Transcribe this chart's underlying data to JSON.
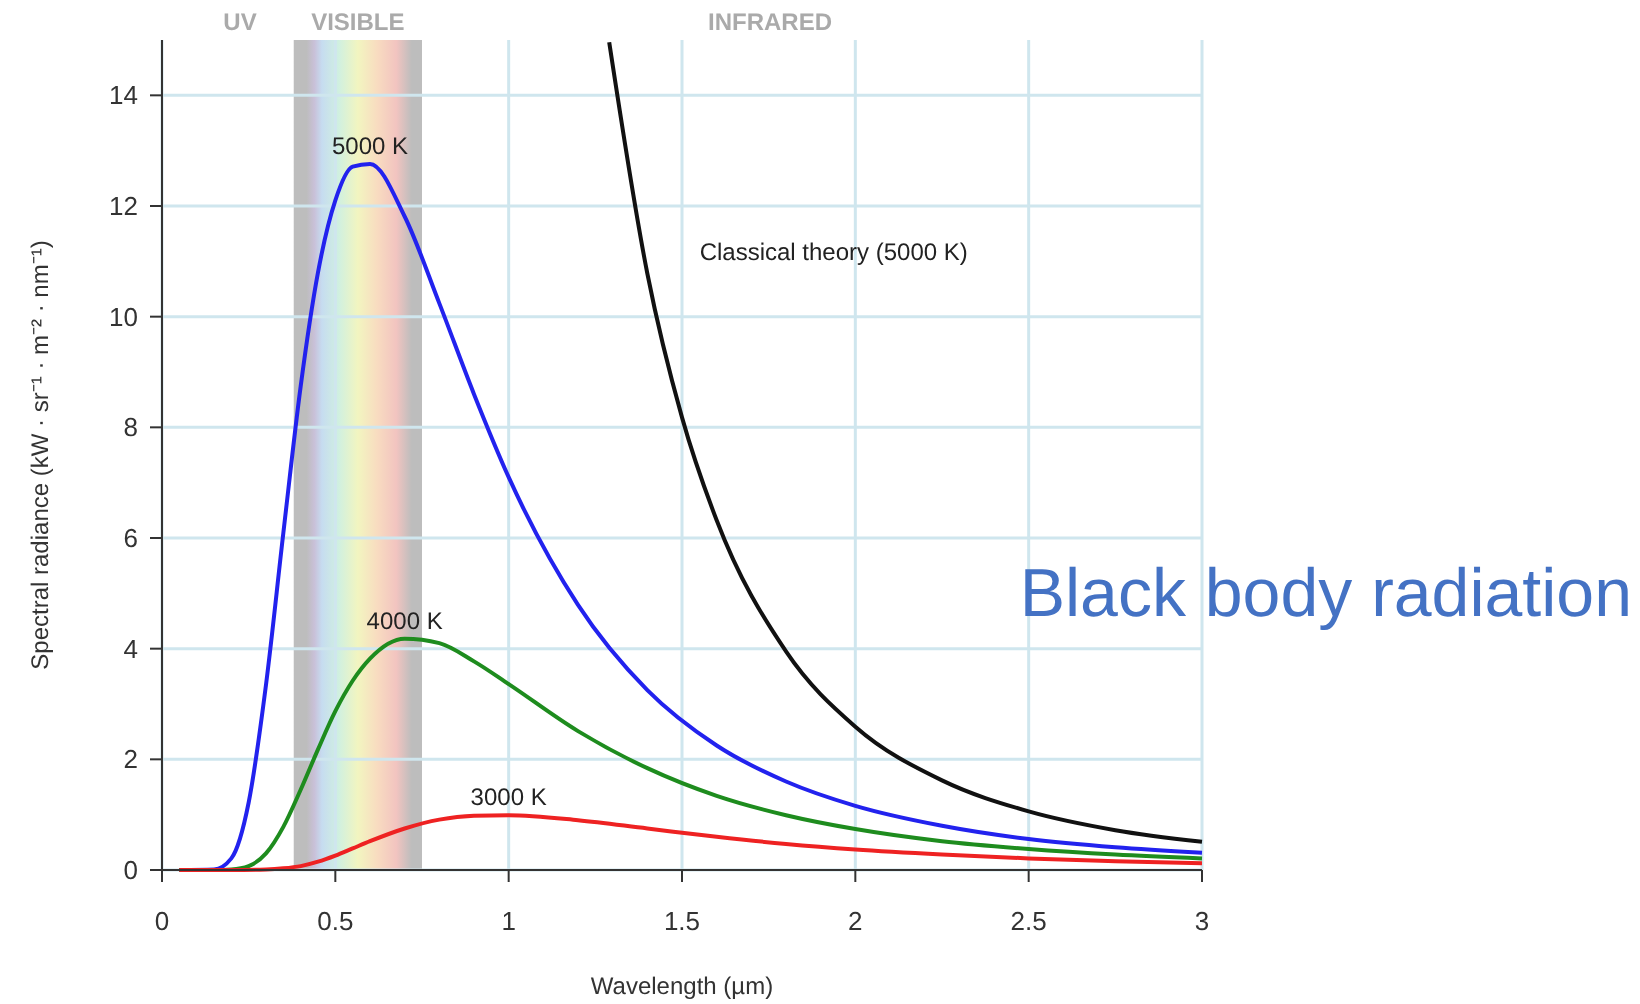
{
  "chart_data": {
    "type": "line",
    "title": "Black body radiation",
    "xlabel": "Wavelength (µm)",
    "ylabel": "Spectral radiance (kW · sr⁻¹ · m⁻² · nm⁻¹)",
    "xlim": [
      0,
      3
    ],
    "ylim": [
      0,
      15
    ],
    "xticks": [
      0,
      0.5,
      1,
      1.5,
      2,
      2.5,
      3
    ],
    "yticks": [
      0,
      2,
      4,
      6,
      8,
      10,
      12,
      14
    ],
    "grid": true,
    "annotations": [
      "UV",
      "INFRARED"
    ],
    "bands": [
      {
        "axis": "x",
        "from": 0.38,
        "to": 0.75,
        "label": "VISIBLE",
        "color": "#bdbdbd"
      }
    ],
    "series": [
      {
        "name": "5000 K",
        "color": "#2222ee",
        "x": [
          0.05,
          0.15,
          0.2,
          0.25,
          0.3,
          0.35,
          0.4,
          0.45,
          0.5,
          0.55,
          0.6,
          0.7,
          0.8,
          0.9,
          1,
          1.2,
          1.4,
          1.6,
          1.8,
          2,
          2.25,
          2.5,
          2.75,
          3
        ],
        "values": [
          0,
          0.01,
          0.21,
          1.22,
          3.35,
          6.09,
          8.74,
          10.8,
          12.1,
          12.71,
          12.76,
          11.81,
          10.24,
          8.6,
          7.1,
          4.79,
          3.25,
          2.25,
          1.6,
          1.16,
          0.8,
          0.56,
          0.41,
          0.31
        ]
      },
      {
        "name": "4000 K",
        "color": "#1e8c1e",
        "x": [
          0.05,
          0.15,
          0.2,
          0.25,
          0.3,
          0.35,
          0.4,
          0.45,
          0.5,
          0.55,
          0.6,
          0.7,
          0.8,
          0.9,
          1,
          1.2,
          1.4,
          1.6,
          1.8,
          2,
          2.25,
          2.5,
          2.75,
          3
        ],
        "values": [
          0,
          0,
          0.01,
          0.07,
          0.3,
          0.78,
          1.45,
          2.18,
          2.87,
          3.42,
          3.82,
          4.18,
          4.1,
          3.77,
          3.36,
          2.51,
          1.84,
          1.34,
          0.99,
          0.74,
          0.52,
          0.38,
          0.28,
          0.21
        ]
      },
      {
        "name": "3000 K",
        "color": "#ee2222",
        "x": [
          0.05,
          0.2,
          0.3,
          0.35,
          0.4,
          0.45,
          0.5,
          0.55,
          0.6,
          0.7,
          0.8,
          0.9,
          1,
          1.2,
          1.4,
          1.6,
          1.8,
          2,
          2.25,
          2.5,
          2.75,
          3
        ],
        "values": [
          0,
          0,
          0.01,
          0.03,
          0.07,
          0.15,
          0.26,
          0.39,
          0.52,
          0.75,
          0.91,
          0.98,
          0.99,
          0.9,
          0.75,
          0.6,
          0.47,
          0.37,
          0.28,
          0.21,
          0.16,
          0.12
        ]
      },
      {
        "name": "Classical theory (5000 K)",
        "color": "#111111",
        "x": [
          1.29,
          1.4,
          1.5,
          1.6,
          1.8,
          2,
          2.25,
          2.5,
          2.75,
          3
        ],
        "values": [
          14.96,
          10.78,
          8.18,
          6.32,
          3.95,
          2.59,
          1.62,
          1.06,
          0.72,
          0.51
        ]
      }
    ]
  }
}
